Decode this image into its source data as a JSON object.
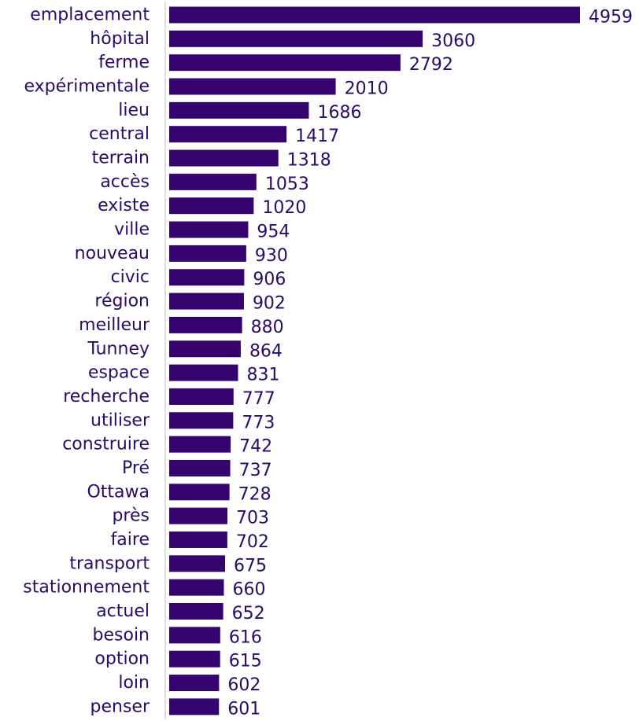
{
  "colors": {
    "bar": "#36046e",
    "text": "#2a0a6b",
    "axis": "#bfbfbf"
  },
  "chart_data": {
    "type": "bar",
    "orientation": "horizontal",
    "title": "",
    "xlabel": "",
    "ylabel": "",
    "xlim": [
      0,
      4959
    ],
    "grid": false,
    "legend": "none",
    "data_labels": true,
    "categories": [
      "emplacement",
      "hôpital",
      "ferme",
      "expérimentale",
      "lieu",
      "central",
      "terrain",
      "accès",
      "existe",
      "ville",
      "nouveau",
      "civic",
      "région",
      "meilleur",
      "Tunney",
      "espace",
      "recherche",
      "utiliser",
      "construire",
      "Pré",
      "Ottawa",
      "près",
      "faire",
      "transport",
      "stationnement",
      "actuel",
      "besoin",
      "option",
      "loin",
      "penser"
    ],
    "values": [
      4959,
      3060,
      2792,
      2010,
      1686,
      1417,
      1318,
      1053,
      1020,
      954,
      930,
      906,
      902,
      880,
      864,
      831,
      777,
      773,
      742,
      737,
      728,
      703,
      702,
      675,
      660,
      652,
      616,
      615,
      602,
      601
    ]
  }
}
